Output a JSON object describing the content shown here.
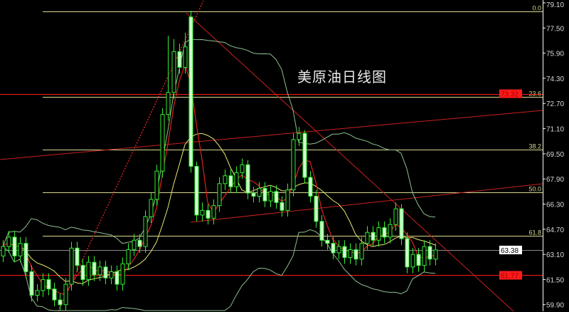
{
  "chart_data": {
    "type": "candlestick",
    "title": "美原油日线图",
    "ylim": [
      59.5,
      79.3
    ],
    "y_ticks": [
      "79.10",
      "77.50",
      "75.90",
      "74.30",
      "72.70",
      "71.10",
      "69.50",
      "67.90",
      "66.30",
      "64.70",
      "63.10",
      "61.50",
      "59.90"
    ],
    "fib_levels": [
      {
        "label": "0.0",
        "price": 78.55
      },
      {
        "label": "23.6",
        "price": 73.1
      },
      {
        "label": "38.2",
        "price": 69.75
      },
      {
        "label": "50.0",
        "price": 67.05
      },
      {
        "label": "61.8",
        "price": 64.3
      }
    ],
    "price_markers": [
      {
        "label": "73.32",
        "price": 73.32,
        "color": "#ff1a1a",
        "text_color": "#a00000"
      },
      {
        "label": "61.77",
        "price": 61.77,
        "color": "#ff1a1a",
        "text_color": "#a00000"
      },
      {
        "label": "63.38",
        "price": 63.38,
        "color": "#ffffff",
        "text_color": "#000000"
      }
    ],
    "candles": {
      "open": [
        63.0,
        63.6,
        64.2,
        63.0,
        63.8,
        62.0,
        60.5,
        60.8,
        61.5,
        60.9,
        60.2,
        59.9,
        61.2,
        63.5,
        62.4,
        61.5,
        62.6,
        61.8,
        62.3,
        61.6,
        62.0,
        61.2,
        62.5,
        63.4,
        64.0,
        63.6,
        65.5,
        66.6,
        68.4,
        72.0,
        73.4,
        76.0,
        75.0,
        78.2,
        68.7,
        65.6,
        65.9,
        65.4,
        66.2,
        67.6,
        68.1,
        67.4,
        68.3,
        68.8,
        67.0,
        66.8,
        67.3,
        66.5,
        67.1,
        66.4,
        65.9,
        67.2,
        70.4,
        70.8,
        68.0,
        66.8,
        65.2,
        64.0,
        63.8,
        63.2,
        63.6,
        62.9,
        63.4,
        62.8,
        63.8,
        64.5,
        64.0,
        64.8,
        64.2,
        65.0,
        66.0,
        64.1,
        62.3,
        63.1,
        62.4,
        63.6,
        62.8
      ],
      "high": [
        64.0,
        64.6,
        64.6,
        64.2,
        64.2,
        62.4,
        61.2,
        61.9,
        61.9,
        61.3,
        60.6,
        61.6,
        63.9,
        63.9,
        62.8,
        63.0,
        63.0,
        62.7,
        62.7,
        62.4,
        62.4,
        62.9,
        63.8,
        64.4,
        64.4,
        65.9,
        67.0,
        68.8,
        72.4,
        77.0,
        76.8,
        76.5,
        77.2,
        78.6,
        69.0,
        66.4,
        66.3,
        66.6,
        68.0,
        68.5,
        68.5,
        68.7,
        69.2,
        69.1,
        67.4,
        67.7,
        67.7,
        67.5,
        67.5,
        66.8,
        67.6,
        70.8,
        71.2,
        71.0,
        68.4,
        67.2,
        65.6,
        64.4,
        64.2,
        64.0,
        64.0,
        63.8,
        63.8,
        64.2,
        64.9,
        64.9,
        65.2,
        65.2,
        65.4,
        66.4,
        66.3,
        64.5,
        63.5,
        63.5,
        64.0,
        64.0,
        63.8
      ],
      "low": [
        62.6,
        63.2,
        62.6,
        62.6,
        61.6,
        60.1,
        60.1,
        60.4,
        60.5,
        59.8,
        59.5,
        59.5,
        60.8,
        62.0,
        61.1,
        61.1,
        61.4,
        61.4,
        61.2,
        61.2,
        60.8,
        60.8,
        62.1,
        63.0,
        63.2,
        63.2,
        65.1,
        66.2,
        68.0,
        71.6,
        73.0,
        74.6,
        74.6,
        68.3,
        65.2,
        65.2,
        65.0,
        65.0,
        65.8,
        67.2,
        67.0,
        67.0,
        67.9,
        66.6,
        66.4,
        66.4,
        66.1,
        66.1,
        66.0,
        65.5,
        65.5,
        66.8,
        70.0,
        67.6,
        66.4,
        64.8,
        63.6,
        63.4,
        62.8,
        62.8,
        62.5,
        62.5,
        62.4,
        62.4,
        63.4,
        63.6,
        63.6,
        63.8,
        63.8,
        64.6,
        63.7,
        61.9,
        61.9,
        62.0,
        62.0,
        62.4,
        62.4
      ],
      "close": [
        63.6,
        64.2,
        63.0,
        63.8,
        62.0,
        60.5,
        60.8,
        61.5,
        60.9,
        60.2,
        59.9,
        61.2,
        63.5,
        62.4,
        61.5,
        62.6,
        61.8,
        62.3,
        61.6,
        62.0,
        61.2,
        62.5,
        63.4,
        64.0,
        63.6,
        65.5,
        66.6,
        68.4,
        72.0,
        73.4,
        76.0,
        75.0,
        76.3,
        68.7,
        65.6,
        65.9,
        65.4,
        66.2,
        67.6,
        68.1,
        67.4,
        68.3,
        68.8,
        67.0,
        66.8,
        67.3,
        66.5,
        67.1,
        66.4,
        65.9,
        67.2,
        70.4,
        70.8,
        68.0,
        66.8,
        65.2,
        64.0,
        63.8,
        63.2,
        63.6,
        62.9,
        63.4,
        62.8,
        63.8,
        64.5,
        64.0,
        64.8,
        64.2,
        65.0,
        66.0,
        64.1,
        62.3,
        63.1,
        62.4,
        63.6,
        62.8,
        63.38
      ]
    },
    "colors": {
      "background": "#000000",
      "candle_outline": "#33ee33",
      "candle_fill": "#ccffcc",
      "ma_short": "#e02020",
      "ma_long": "#e8e870",
      "bollinger": "#8fbf8f",
      "fib_line": "#d8d890",
      "trendline": "#c82020"
    }
  }
}
